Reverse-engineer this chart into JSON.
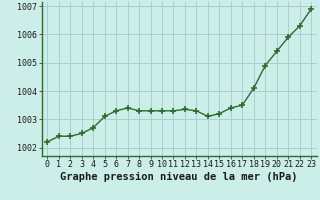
{
  "x": [
    0,
    1,
    2,
    3,
    4,
    5,
    6,
    7,
    8,
    9,
    10,
    11,
    12,
    13,
    14,
    15,
    16,
    17,
    18,
    19,
    20,
    21,
    22,
    23
  ],
  "y": [
    1002.2,
    1002.4,
    1002.4,
    1002.5,
    1002.7,
    1003.1,
    1003.3,
    1003.4,
    1003.3,
    1003.3,
    1003.3,
    1003.3,
    1003.35,
    1003.3,
    1003.1,
    1003.2,
    1003.4,
    1003.5,
    1004.1,
    1004.9,
    1005.4,
    1005.9,
    1006.3,
    1006.9
  ],
  "line_color": "#2d6a2d",
  "marker": "+",
  "marker_size": 5,
  "bg_color": "#cceee8",
  "grid_color": "#aacfcf",
  "xlabel": "Graphe pression niveau de la mer (hPa)",
  "xlabel_fontsize": 7.5,
  "ytick_labels": [
    "1002",
    "1003",
    "1004",
    "1005",
    "1006",
    "1007"
  ],
  "ytick_values": [
    1002,
    1003,
    1004,
    1005,
    1006,
    1007
  ],
  "ylim": [
    1001.7,
    1007.15
  ],
  "xlim": [
    -0.5,
    23.5
  ],
  "xtick_labels": [
    "0",
    "1",
    "2",
    "3",
    "4",
    "5",
    "6",
    "7",
    "8",
    "9",
    "10",
    "11",
    "12",
    "13",
    "14",
    "15",
    "16",
    "17",
    "18",
    "19",
    "20",
    "21",
    "22",
    "23"
  ],
  "tick_fontsize": 6.0,
  "linewidth": 1.0,
  "marker_color": "#2d6a2d"
}
